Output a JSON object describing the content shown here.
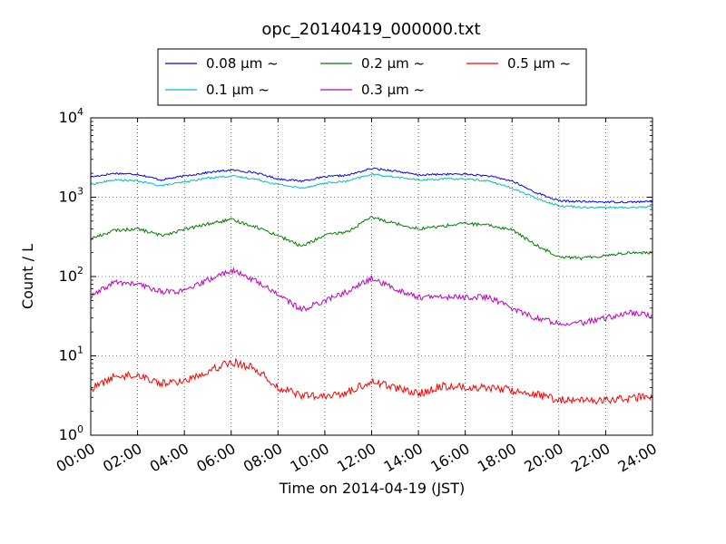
{
  "chart_data": {
    "type": "line",
    "title": "opc_20140419_000000.txt",
    "xlabel": "Time on 2014-04-19 (JST)",
    "ylabel": "Count / L",
    "y_scale": "log",
    "ylim": [
      1,
      10000
    ],
    "xlim": [
      0,
      24
    ],
    "x_tick_labels": [
      "00:00",
      "02:00",
      "04:00",
      "06:00",
      "08:00",
      "10:00",
      "12:00",
      "14:00",
      "16:00",
      "18:00",
      "20:00",
      "22:00",
      "24:00"
    ],
    "y_tick_labels": [
      {
        "base": "10",
        "exp": "0"
      },
      {
        "base": "10",
        "exp": "1"
      },
      {
        "base": "10",
        "exp": "2"
      },
      {
        "base": "10",
        "exp": "3"
      },
      {
        "base": "10",
        "exp": "4"
      }
    ],
    "grid": true,
    "legend_position": "top-center",
    "series": [
      {
        "name": "0.08 μm ~",
        "color": "#0000ff",
        "x": [
          0,
          1,
          2,
          3,
          4,
          5,
          6,
          7,
          8,
          9,
          10,
          11,
          12,
          13,
          14,
          15,
          16,
          17,
          18,
          19,
          20,
          21,
          22,
          23,
          24
        ],
        "y": [
          1800,
          2000,
          1950,
          1650,
          1850,
          2050,
          2200,
          2050,
          1700,
          1600,
          1800,
          1900,
          2300,
          2150,
          1900,
          1950,
          1950,
          1850,
          1600,
          1150,
          900,
          880,
          870,
          870,
          880
        ]
      },
      {
        "name": "0.1 μm ~",
        "color": "#00bfbf",
        "x": [
          0,
          1,
          2,
          3,
          4,
          5,
          6,
          7,
          8,
          9,
          10,
          11,
          12,
          13,
          14,
          15,
          16,
          17,
          18,
          19,
          20,
          21,
          22,
          23,
          24
        ],
        "y": [
          1450,
          1650,
          1600,
          1400,
          1550,
          1750,
          1850,
          1700,
          1450,
          1300,
          1500,
          1600,
          1950,
          1800,
          1650,
          1700,
          1700,
          1600,
          1300,
          980,
          780,
          750,
          740,
          740,
          760
        ]
      },
      {
        "name": "0.2 μm ~",
        "color": "#008000",
        "x": [
          0,
          1,
          2,
          3,
          4,
          5,
          6,
          7,
          8,
          9,
          10,
          11,
          12,
          13,
          14,
          15,
          16,
          17,
          18,
          19,
          20,
          21,
          22,
          23,
          24
        ],
        "y": [
          300,
          380,
          400,
          330,
          390,
          460,
          520,
          430,
          330,
          240,
          330,
          370,
          560,
          470,
          400,
          430,
          470,
          440,
          390,
          250,
          180,
          170,
          185,
          200,
          200
        ]
      },
      {
        "name": "0.3 μm ~",
        "color": "#bf00bf",
        "x": [
          0,
          1,
          2,
          3,
          4,
          5,
          6,
          7,
          8,
          9,
          10,
          11,
          12,
          13,
          14,
          15,
          16,
          17,
          18,
          19,
          20,
          21,
          22,
          23,
          24
        ],
        "y": [
          55,
          85,
          80,
          65,
          65,
          90,
          120,
          90,
          60,
          38,
          50,
          65,
          95,
          70,
          55,
          55,
          55,
          55,
          40,
          30,
          26,
          26,
          30,
          35,
          32
        ]
      },
      {
        "name": "0.5 μm ~",
        "color": "#ff0000",
        "x": [
          0,
          1,
          2,
          3,
          4,
          5,
          6,
          7,
          8,
          9,
          10,
          11,
          12,
          13,
          14,
          15,
          16,
          17,
          18,
          19,
          20,
          21,
          22,
          23,
          24
        ],
        "y": [
          3.8,
          5.5,
          5.8,
          4.5,
          4.8,
          6.5,
          8.5,
          7,
          4,
          3.2,
          3,
          3.5,
          4.8,
          4,
          3.3,
          4.2,
          4,
          4,
          3.7,
          3.3,
          2.8,
          2.7,
          2.8,
          2.9,
          3.1
        ]
      }
    ]
  }
}
